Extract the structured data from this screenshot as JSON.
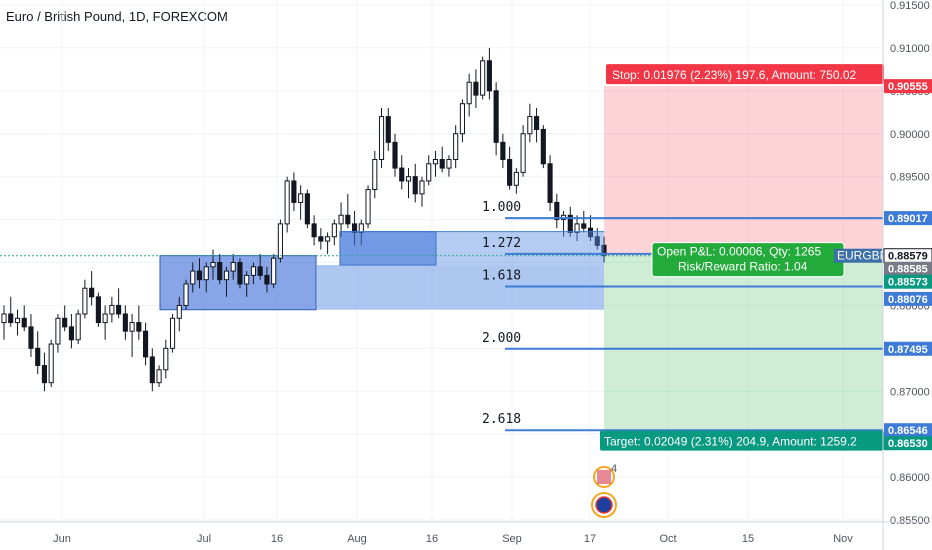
{
  "header": {
    "title": "Euro / British Pound, 1D, FOREXCOM"
  },
  "colors": {
    "up": "#ffffff",
    "down": "#131722",
    "fib": "#3d7bd6",
    "stop": "#f23645",
    "target": "#089981",
    "last": "#26a69a"
  },
  "chart_data": {
    "type": "candlestick",
    "title": "Euro / British Pound, 1D, FOREXCOM",
    "y_ticks": [
      "0.91500",
      "0.91000",
      "0.90500",
      "0.90000",
      "0.89500",
      "0.89000",
      "0.88500",
      "0.88000",
      "0.87500",
      "0.87000",
      "0.86500",
      "0.86000",
      "0.85500"
    ],
    "x_ticks": [
      "Jun",
      "Jul",
      "16",
      "Aug",
      "16",
      "Sep",
      "17",
      "Oct",
      "15",
      "Nov"
    ],
    "price_labels": [
      {
        "text": "0.90555",
        "value": 0.90555,
        "kind": "stop"
      },
      {
        "text": "0.89017",
        "value": 0.89017,
        "kind": "fib"
      },
      {
        "text": "0.88579",
        "value": 0.88579,
        "kind": "last"
      },
      {
        "text": "0.88585",
        "value": 0.88585,
        "kind": "grey"
      },
      {
        "text": "0.88573",
        "value": 0.88573,
        "kind": "green"
      },
      {
        "text": "0.88076",
        "value": 0.88076,
        "kind": "fib"
      },
      {
        "text": "0.87495",
        "value": 0.87495,
        "kind": "fib"
      },
      {
        "text": "0.86546",
        "value": 0.86546,
        "kind": "fib"
      },
      {
        "text": "0.86530",
        "value": 0.8653,
        "kind": "target"
      }
    ],
    "fib_levels": [
      {
        "label": "1.000",
        "value": 0.89017
      },
      {
        "label": "1.272",
        "value": 0.886
      },
      {
        "label": "1.618",
        "value": 0.8822
      },
      {
        "label": "2.000",
        "value": 0.87495
      },
      {
        "label": "2.618",
        "value": 0.86546
      }
    ],
    "position": {
      "entry": 0.8858,
      "stop": 0.90555,
      "target": 0.8653,
      "stop_text": "Stop: 0.01976 (2.23%) 197.6, Amount: 750.02",
      "target_text": "Target: 0.02049 (2.31%) 204.9, Amount: 1259.2",
      "pnl_text": "Open P&L: 0.00006, Qty: 1265",
      "rr_text": "Risk/Reward Ratio: 1.04",
      "symbol_text": "EURGBP"
    },
    "event_count": "4",
    "zones": [
      {
        "from_day": 160,
        "to_day": 316,
        "top": 0.8858,
        "bottom": 0.8795
      },
      {
        "from_day": 340,
        "to_day": 436,
        "top": 0.8886,
        "bottom": 0.8847
      }
    ],
    "candles": [
      [
        0.878,
        0.88,
        0.876,
        0.879
      ],
      [
        0.879,
        0.881,
        0.8775,
        0.878
      ],
      [
        0.878,
        0.8795,
        0.8765,
        0.8785
      ],
      [
        0.8785,
        0.88,
        0.877,
        0.8775
      ],
      [
        0.8775,
        0.879,
        0.874,
        0.875
      ],
      [
        0.875,
        0.877,
        0.872,
        0.873
      ],
      [
        0.873,
        0.8745,
        0.87,
        0.871
      ],
      [
        0.871,
        0.876,
        0.8705,
        0.8755
      ],
      [
        0.8755,
        0.879,
        0.8745,
        0.8785
      ],
      [
        0.8785,
        0.88,
        0.877,
        0.8775
      ],
      [
        0.8775,
        0.879,
        0.875,
        0.876
      ],
      [
        0.876,
        0.8795,
        0.8755,
        0.879
      ],
      [
        0.879,
        0.883,
        0.8785,
        0.882
      ],
      [
        0.882,
        0.884,
        0.88,
        0.881
      ],
      [
        0.881,
        0.8815,
        0.8775,
        0.878
      ],
      [
        0.878,
        0.88,
        0.876,
        0.879
      ],
      [
        0.879,
        0.881,
        0.878,
        0.88
      ],
      [
        0.88,
        0.882,
        0.8785,
        0.879
      ],
      [
        0.879,
        0.88,
        0.876,
        0.877
      ],
      [
        0.877,
        0.879,
        0.874,
        0.878
      ],
      [
        0.878,
        0.88,
        0.876,
        0.877
      ],
      [
        0.877,
        0.878,
        0.873,
        0.874
      ],
      [
        0.874,
        0.875,
        0.87,
        0.871
      ],
      [
        0.871,
        0.873,
        0.8705,
        0.8725
      ],
      [
        0.8725,
        0.876,
        0.8715,
        0.875
      ],
      [
        0.875,
        0.879,
        0.8745,
        0.8785
      ],
      [
        0.8785,
        0.881,
        0.877,
        0.88
      ],
      [
        0.88,
        0.883,
        0.8795,
        0.8825
      ],
      [
        0.8825,
        0.885,
        0.8815,
        0.884
      ],
      [
        0.884,
        0.8855,
        0.882,
        0.883
      ],
      [
        0.883,
        0.885,
        0.8815,
        0.8845
      ],
      [
        0.8845,
        0.8865,
        0.883,
        0.885
      ],
      [
        0.885,
        0.886,
        0.8825,
        0.883
      ],
      [
        0.883,
        0.8845,
        0.881,
        0.884
      ],
      [
        0.884,
        0.886,
        0.883,
        0.885
      ],
      [
        0.885,
        0.8855,
        0.882,
        0.8825
      ],
      [
        0.8825,
        0.884,
        0.881,
        0.8835
      ],
      [
        0.8835,
        0.885,
        0.8825,
        0.8845
      ],
      [
        0.8845,
        0.886,
        0.883,
        0.8835
      ],
      [
        0.8835,
        0.8845,
        0.8815,
        0.8825
      ],
      [
        0.8825,
        0.886,
        0.882,
        0.8855
      ],
      [
        0.8855,
        0.89,
        0.885,
        0.8895
      ],
      [
        0.8895,
        0.895,
        0.8885,
        0.8945
      ],
      [
        0.8945,
        0.8955,
        0.891,
        0.892
      ],
      [
        0.892,
        0.894,
        0.89,
        0.893
      ],
      [
        0.893,
        0.8935,
        0.889,
        0.8895
      ],
      [
        0.8895,
        0.8905,
        0.887,
        0.888
      ],
      [
        0.888,
        0.889,
        0.8865,
        0.8875
      ],
      [
        0.8875,
        0.8885,
        0.886,
        0.888
      ],
      [
        0.888,
        0.89,
        0.887,
        0.8895
      ],
      [
        0.8895,
        0.892,
        0.888,
        0.8905
      ],
      [
        0.8905,
        0.893,
        0.889,
        0.8895
      ],
      [
        0.8895,
        0.891,
        0.887,
        0.8885
      ],
      [
        0.8885,
        0.89,
        0.887,
        0.8895
      ],
      [
        0.8895,
        0.894,
        0.889,
        0.8935
      ],
      [
        0.8935,
        0.898,
        0.8925,
        0.897
      ],
      [
        0.897,
        0.903,
        0.896,
        0.902
      ],
      [
        0.902,
        0.903,
        0.898,
        0.899
      ],
      [
        0.899,
        0.9,
        0.895,
        0.896
      ],
      [
        0.896,
        0.8975,
        0.8935,
        0.8945
      ],
      [
        0.8945,
        0.896,
        0.8925,
        0.895
      ],
      [
        0.895,
        0.8965,
        0.892,
        0.893
      ],
      [
        0.893,
        0.895,
        0.8915,
        0.8945
      ],
      [
        0.8945,
        0.8975,
        0.894,
        0.8965
      ],
      [
        0.8965,
        0.898,
        0.895,
        0.897
      ],
      [
        0.897,
        0.8985,
        0.8955,
        0.896
      ],
      [
        0.896,
        0.8975,
        0.895,
        0.897
      ],
      [
        0.897,
        0.901,
        0.896,
        0.9
      ],
      [
        0.9,
        0.904,
        0.899,
        0.9035
      ],
      [
        0.9035,
        0.907,
        0.902,
        0.906
      ],
      [
        0.906,
        0.9075,
        0.903,
        0.9045
      ],
      [
        0.9045,
        0.909,
        0.904,
        0.9085
      ],
      [
        0.9085,
        0.91,
        0.904,
        0.905
      ],
      [
        0.905,
        0.906,
        0.8975,
        0.899
      ],
      [
        0.899,
        0.9,
        0.896,
        0.897
      ],
      [
        0.897,
        0.8985,
        0.8935,
        0.894
      ],
      [
        0.894,
        0.896,
        0.893,
        0.8955
      ],
      [
        0.8955,
        0.901,
        0.895,
        0.9
      ],
      [
        0.9,
        0.9035,
        0.899,
        0.902
      ],
      [
        0.902,
        0.903,
        0.899,
        0.9005
      ],
      [
        0.9005,
        0.901,
        0.896,
        0.8965
      ],
      [
        0.8965,
        0.8975,
        0.891,
        0.892
      ],
      [
        0.892,
        0.893,
        0.889,
        0.89
      ],
      [
        0.89,
        0.891,
        0.888,
        0.8905
      ],
      [
        0.8905,
        0.8915,
        0.888,
        0.8885
      ],
      [
        0.8885,
        0.8905,
        0.8875,
        0.8895
      ],
      [
        0.8895,
        0.891,
        0.8885,
        0.889
      ],
      [
        0.889,
        0.8905,
        0.8875,
        0.888
      ],
      [
        0.888,
        0.889,
        0.8865,
        0.887
      ],
      [
        0.887,
        0.888,
        0.885,
        0.8858
      ]
    ]
  }
}
